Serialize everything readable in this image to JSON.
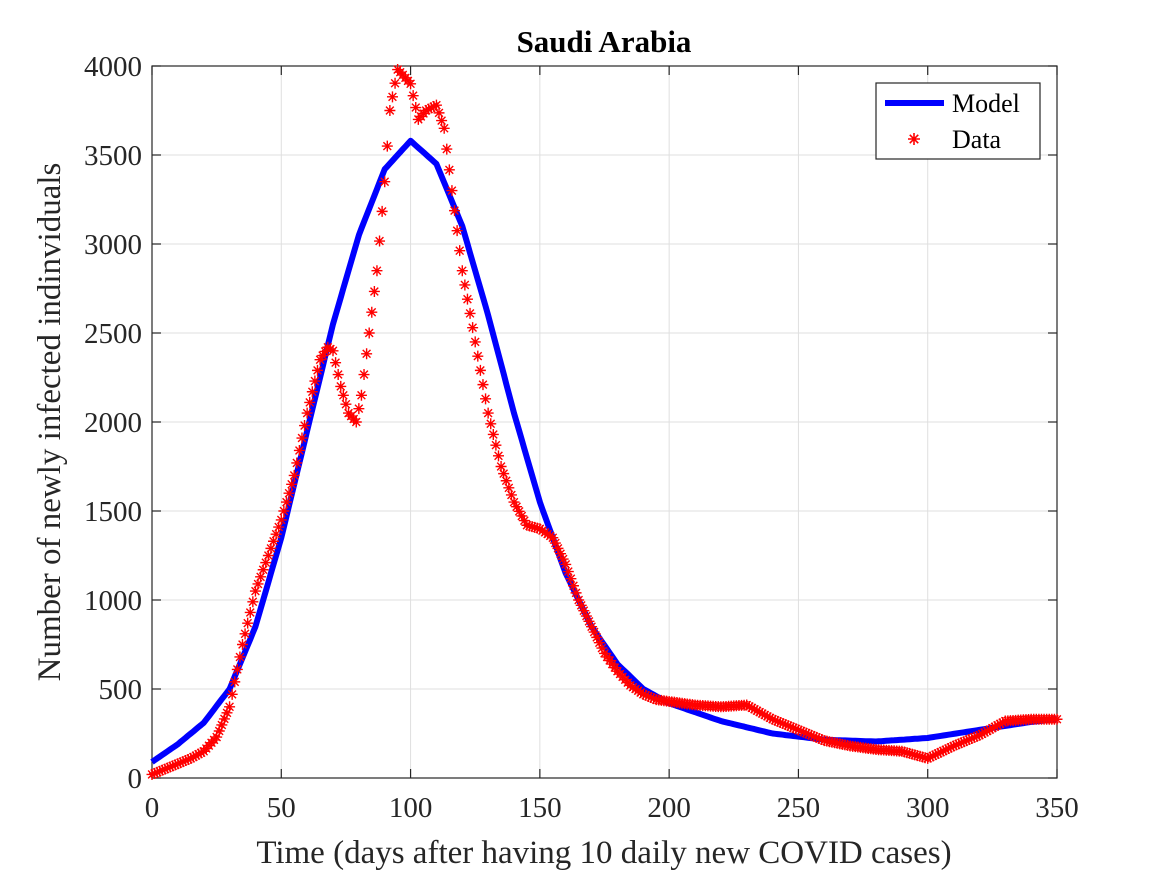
{
  "chart_data": {
    "type": "line",
    "title": "Saudi Arabia",
    "xlabel": "Time (days after having 10 daily new COVID cases)",
    "ylabel": "Number of newly infected indinviduals",
    "xlim": [
      0,
      350
    ],
    "ylim": [
      0,
      4000
    ],
    "xticks": [
      "0",
      "50",
      "100",
      "150",
      "200",
      "250",
      "300",
      "350"
    ],
    "yticks": [
      "0",
      "500",
      "1000",
      "1500",
      "2000",
      "2500",
      "3000",
      "3500",
      "4000"
    ],
    "grid": true,
    "legend_position": "top-right",
    "series": [
      {
        "name": "Model",
        "style": "line",
        "color": "#0000ff",
        "x": [
          0,
          10,
          20,
          30,
          40,
          50,
          60,
          70,
          80,
          90,
          100,
          110,
          120,
          130,
          140,
          150,
          160,
          170,
          180,
          190,
          200,
          220,
          240,
          260,
          280,
          300,
          320,
          340,
          350
        ],
        "y": [
          90,
          190,
          310,
          500,
          850,
          1350,
          1950,
          2550,
          3050,
          3420,
          3580,
          3450,
          3100,
          2600,
          2050,
          1550,
          1150,
          850,
          640,
          500,
          420,
          320,
          250,
          215,
          205,
          225,
          270,
          315,
          330
        ]
      },
      {
        "name": "Data",
        "style": "markers",
        "marker": "asterisk",
        "color": "#ff0000",
        "x": [
          0,
          5,
          10,
          15,
          20,
          25,
          30,
          35,
          40,
          45,
          50,
          55,
          60,
          65,
          68,
          70,
          73,
          76,
          79,
          81,
          84,
          87,
          90,
          92,
          95,
          97,
          100,
          103,
          106,
          110,
          113,
          116,
          120,
          125,
          130,
          135,
          140,
          145,
          150,
          155,
          160,
          165,
          170,
          175,
          180,
          185,
          190,
          195,
          200,
          210,
          220,
          230,
          240,
          250,
          260,
          270,
          280,
          290,
          300,
          310,
          320,
          330,
          340,
          350
        ],
        "y": [
          20,
          50,
          80,
          110,
          150,
          230,
          400,
          750,
          1050,
          1250,
          1450,
          1700,
          2050,
          2350,
          2420,
          2400,
          2200,
          2050,
          2000,
          2150,
          2500,
          2850,
          3350,
          3750,
          3980,
          3950,
          3900,
          3700,
          3750,
          3780,
          3650,
          3300,
          2850,
          2450,
          2050,
          1750,
          1550,
          1420,
          1400,
          1350,
          1200,
          1000,
          850,
          700,
          600,
          520,
          470,
          440,
          430,
          410,
          400,
          410,
          330,
          270,
          210,
          180,
          160,
          150,
          110,
          180,
          240,
          320,
          330,
          330
        ]
      }
    ]
  },
  "legend": {
    "model_label": "Model",
    "data_label": "Data"
  }
}
